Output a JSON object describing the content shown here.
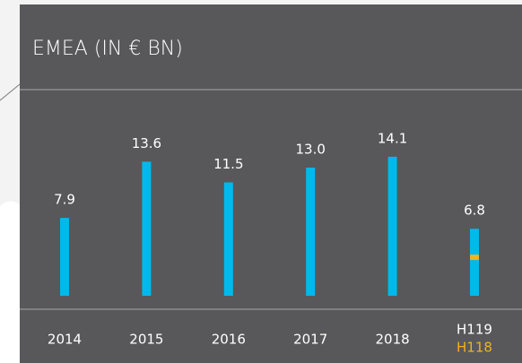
{
  "chart_data": {
    "type": "bar",
    "title": "EMEA (IN € BN)",
    "categories": [
      "2014",
      "2015",
      "2016",
      "2017",
      "2018",
      "H119"
    ],
    "values": [
      7.9,
      13.6,
      11.5,
      13.0,
      14.1,
      6.8
    ],
    "value_labels": [
      "7.9",
      "13.6",
      "11.5",
      "13.0",
      "14.1",
      "6.8"
    ],
    "color": "#00b9ec",
    "comparison": {
      "label": "H118",
      "value": 3.9,
      "color": "#f2b31b"
    },
    "ylim": [
      0,
      15
    ]
  }
}
